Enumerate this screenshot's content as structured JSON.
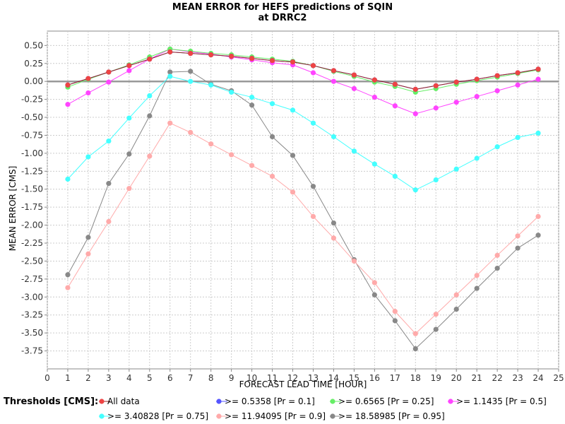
{
  "chart_data": {
    "type": "line",
    "title": "MEAN ERROR for HEFS predictions of SQIN",
    "subtitle": "at DRRC2",
    "xlabel": "FORECAST LEAD TIME [HOUR]",
    "ylabel": "MEAN ERROR [CMS]",
    "xlim": [
      0,
      25
    ],
    "ylim": [
      -4.0,
      0.7
    ],
    "xticks": [
      "0",
      "1",
      "2",
      "3",
      "4",
      "5",
      "6",
      "7",
      "8",
      "9",
      "10",
      "11",
      "12",
      "13",
      "14",
      "15",
      "16",
      "17",
      "18",
      "19",
      "20",
      "21",
      "22",
      "23",
      "24",
      "25"
    ],
    "yticks": [
      "0.50",
      "0.25",
      "0.00",
      "-0.25",
      "-0.50",
      "-0.75",
      "-1.00",
      "-1.25",
      "-1.50",
      "-1.75",
      "-2.00",
      "-2.25",
      "-2.50",
      "-2.75",
      "-3.00",
      "-3.25",
      "-3.50",
      "-3.75"
    ],
    "grid": true,
    "zero_line": true,
    "legend_title": "Thresholds [CMS]:",
    "legend_position": "bottom",
    "x": [
      1,
      2,
      3,
      4,
      5,
      6,
      7,
      8,
      9,
      10,
      11,
      12,
      13,
      14,
      15,
      16,
      17,
      18,
      19,
      20,
      21,
      22,
      23,
      24
    ],
    "series": [
      {
        "name": "All data",
        "color": "#ee4444",
        "line_color": "#992222",
        "values": [
          -0.05,
          0.04,
          0.13,
          0.22,
          0.31,
          0.41,
          0.39,
          0.37,
          0.35,
          0.32,
          0.29,
          0.27,
          0.22,
          0.15,
          0.09,
          0.02,
          -0.04,
          -0.11,
          -0.06,
          -0.01,
          0.03,
          0.08,
          0.12,
          0.17
        ]
      },
      {
        "name": ">= 0.5358 [Pr = 0.1]",
        "color": "#5555ff",
        "line_color": "#5555ff",
        "values": [
          -0.05,
          0.04,
          0.13,
          0.22,
          0.31,
          0.41,
          0.39,
          0.37,
          0.35,
          0.32,
          0.29,
          0.27,
          0.22,
          0.15,
          0.09,
          0.02,
          -0.04,
          -0.11,
          -0.06,
          -0.01,
          0.03,
          0.08,
          0.12,
          0.17
        ]
      },
      {
        "name": ">= 0.6565 [Pr = 0.25]",
        "color": "#66ee66",
        "line_color": "#66ee66",
        "values": [
          -0.08,
          0.03,
          0.13,
          0.23,
          0.34,
          0.45,
          0.42,
          0.39,
          0.37,
          0.34,
          0.31,
          0.28,
          0.22,
          0.14,
          0.07,
          -0.01,
          -0.07,
          -0.15,
          -0.1,
          -0.04,
          0.01,
          0.06,
          0.11,
          0.16
        ]
      },
      {
        "name": ">= 1.1435 [Pr = 0.5]",
        "color": "#ff44ff",
        "line_color": "#ff44ff",
        "values": [
          -0.32,
          -0.16,
          -0.01,
          0.15,
          0.31,
          0.45,
          0.41,
          0.38,
          0.34,
          0.3,
          0.26,
          0.23,
          0.12,
          0.0,
          -0.1,
          -0.22,
          -0.34,
          -0.45,
          -0.37,
          -0.29,
          -0.21,
          -0.13,
          -0.05,
          0.03
        ]
      },
      {
        "name": ">= 3.40828 [Pr = 0.75]",
        "color": "#44ffff",
        "line_color": "#44ffff",
        "values": [
          -1.36,
          -1.05,
          -0.83,
          -0.51,
          -0.2,
          0.07,
          0.0,
          -0.05,
          -0.15,
          -0.22,
          -0.31,
          -0.4,
          -0.58,
          -0.77,
          -0.97,
          -1.15,
          -1.32,
          -1.51,
          -1.37,
          -1.22,
          -1.07,
          -0.91,
          -0.78,
          -0.72
        ]
      },
      {
        "name": ">= 11.94095 [Pr = 0.9]",
        "color": "#ffaaaa",
        "line_color": "#ffaaaa",
        "values": [
          -2.87,
          -2.4,
          -1.95,
          -1.49,
          -1.04,
          -0.58,
          -0.71,
          -0.87,
          -1.02,
          -1.17,
          -1.32,
          -1.54,
          -1.88,
          -2.18,
          -2.5,
          -2.8,
          -3.2,
          -3.51,
          -3.24,
          -2.97,
          -2.7,
          -2.42,
          -2.15,
          -1.88
        ]
      },
      {
        "name": ">= 18.58985 [Pr = 0.95]",
        "color": "#888888",
        "line_color": "#888888",
        "values": [
          -2.69,
          -2.17,
          -1.42,
          -1.01,
          -0.48,
          0.13,
          0.14,
          -0.04,
          -0.13,
          -0.33,
          -0.77,
          -1.03,
          -1.46,
          -1.97,
          -2.48,
          -2.97,
          -3.33,
          -3.72,
          -3.45,
          -3.17,
          -2.88,
          -2.6,
          -2.32,
          -2.14
        ]
      }
    ]
  }
}
